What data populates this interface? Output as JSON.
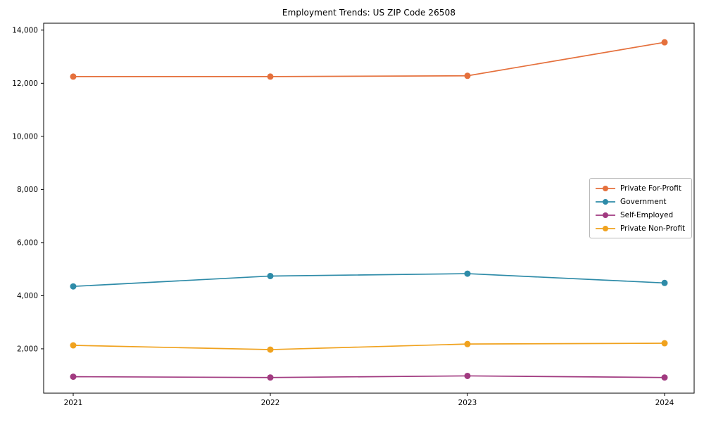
{
  "chart_data": {
    "type": "line",
    "title": "Employment Trends: US ZIP Code 26508",
    "x": [
      2021,
      2022,
      2023,
      2024
    ],
    "categories": [
      "2021",
      "2022",
      "2023",
      "2024"
    ],
    "series": [
      {
        "name": "Private For-Profit",
        "color": "#e5703c",
        "values": [
          12250,
          12250,
          12280,
          13540
        ]
      },
      {
        "name": "Government",
        "color": "#2e8ba8",
        "values": [
          4350,
          4740,
          4830,
          4480
        ]
      },
      {
        "name": "Self-Employed",
        "color": "#a13a80",
        "values": [
          950,
          920,
          980,
          920
        ]
      },
      {
        "name": "Private Non-Profit",
        "color": "#f0a21e",
        "values": [
          2130,
          1970,
          2180,
          2210
        ]
      }
    ],
    "xlabel": "",
    "ylabel": "",
    "xlim": [
      2020.85,
      2024.15
    ],
    "ylim": [
      330,
      14260
    ],
    "yticks": [
      2000,
      4000,
      6000,
      8000,
      10000,
      12000,
      14000
    ],
    "ytick_labels": [
      "2,000",
      "4,000",
      "6,000",
      "8,000",
      "10,000",
      "12,000",
      "14,000"
    ],
    "grid": false,
    "legend": {
      "position": "center-right",
      "entries": [
        "Private For-Profit",
        "Government",
        "Self-Employed",
        "Private Non-Profit"
      ]
    },
    "axis_color": "#000000",
    "text_color": "#000000",
    "background_color": "#ffffff"
  }
}
